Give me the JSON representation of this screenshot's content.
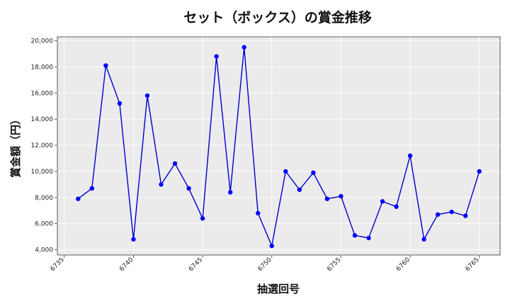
{
  "chart_data": {
    "type": "line",
    "title": "セット（ボックス）の賞金推移",
    "xlabel": "抽選回号",
    "ylabel": "賞金額（円）",
    "x": [
      6736,
      6737,
      6738,
      6739,
      6740,
      6741,
      6742,
      6743,
      6744,
      6745,
      6746,
      6747,
      6748,
      6749,
      6750,
      6751,
      6752,
      6753,
      6754,
      6755,
      6756,
      6757,
      6758,
      6759,
      6760,
      6761,
      6762,
      6763,
      6764,
      6765
    ],
    "series": [
      {
        "values": [
          7900,
          8700,
          18100,
          15200,
          4800,
          15800,
          9000,
          10600,
          8700,
          6400,
          18800,
          8400,
          19500,
          6800,
          4300,
          10000,
          8600,
          9900,
          7900,
          8100,
          5100,
          4900,
          7700,
          7300,
          11200,
          4800,
          6700,
          6900,
          6600,
          10000
        ],
        "color": "#0000cc",
        "marker_color": "#0000ff"
      }
    ],
    "xlim": [
      6734.5,
      6766.5
    ],
    "ylim": [
      3600,
      20300
    ],
    "xticks": [
      "6735",
      "6740",
      "6745",
      "6750",
      "6755",
      "6760",
      "6765"
    ],
    "yticks": [
      "4,000",
      "6,000",
      "8,000",
      "10,000",
      "12,000",
      "14,000",
      "16,000",
      "18,000",
      "20,000"
    ],
    "grid": true,
    "background": "#ebebeb"
  }
}
